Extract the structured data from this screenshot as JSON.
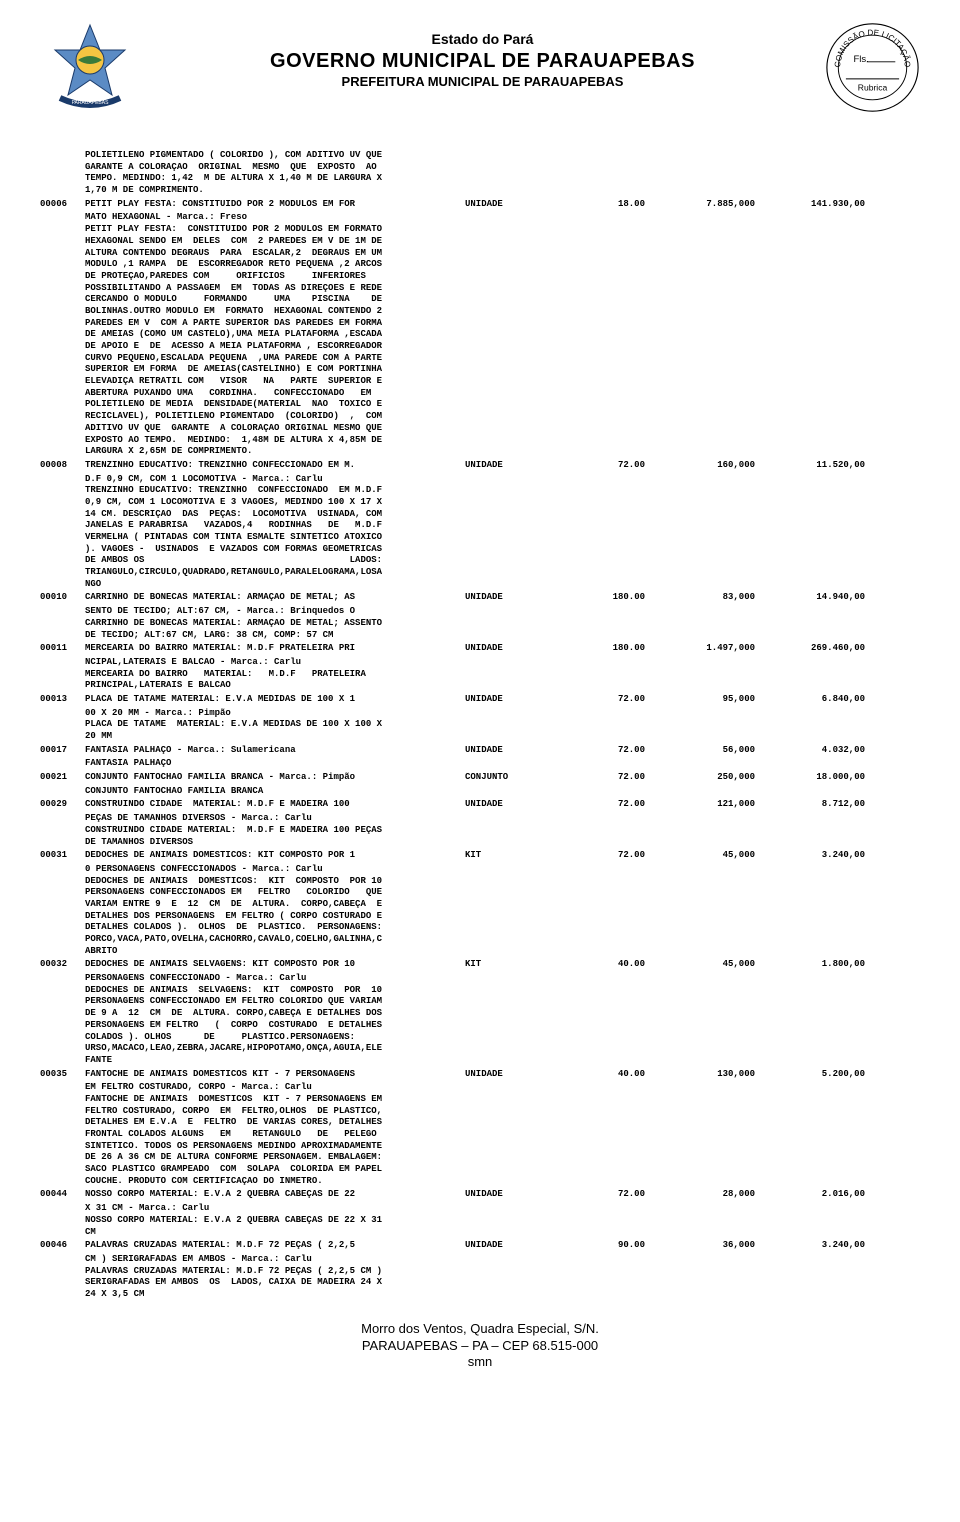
{
  "header": {
    "estado": "Estado do Pará",
    "governo": "GOVERNO MUNICIPAL DE PARAUAPEBAS",
    "prefeitura": "PREFEITURA MUNICIPAL DE PARAUAPEBAS",
    "stamp_top": "Fls.",
    "stamp_bottom": "Rubrica",
    "stamp_ring": "COMISSÃO DE LICITAÇÃO"
  },
  "pre_text": "POLIETILENO PIGMENTADO ( COLORIDO ), COM ADITIVO UV QUE\nGARANTE A COLORAÇAO  ORIGINAL  MESMO  QUE  EXPOSTO  AO\nTEMPO. MEDINDO: 1,42  M DE ALTURA X 1,40 M DE LARGURA X\n1,70 M DE COMPRIMENTO.",
  "items": [
    {
      "code": "00006",
      "unit": "UNIDADE",
      "qty": "18.00",
      "price": "7.885,000",
      "total": "141.930,00",
      "desc": "PETIT PLAY FESTA: CONSTITUIDO POR 2 MODULOS EM FOR\nMATO HEXAGONAL - Marca.: Freso\nPETIT PLAY FESTA:  CONSTITUIDO POR 2 MODULOS EM FORMATO\nHEXAGONAL SENDO EM  DELES  COM  2 PAREDES EM V DE 1M DE\nALTURA CONTENDO DEGRAUS  PARA  ESCALAR,2  DEGRAUS EM UM\nMODULO ,1 RAMPA  DE  ESCORREGADOR RETO PEQUENA ,2 ARCOS\nDE PROTEÇAO,PAREDES COM     ORIFICIOS     INFERIORES\nPOSSIBILITANDO A PASSAGEM  EM  TODAS AS DIREÇOES E REDE\nCERCANDO O MODULO     FORMANDO     UMA    PISCINA    DE\nBOLINHAS.OUTRO MODULO EM  FORMATO  HEXAGONAL CONTENDO 2\nPAREDES EM V  COM A PARTE SUPERIOR DAS PAREDES EM FORMA\nDE AMEIAS (COMO UM CASTELO),UMA MEIA PLATAFORMA ,ESCADA\nDE APOIO E  DE  ACESSO A MEIA PLATAFORMA , ESCORREGADOR\nCURVO PEQUENO,ESCALADA PEQUENA  ,UMA PAREDE COM A PARTE\nSUPERIOR EM FORMA  DE AMEIAS(CASTELINHO) E COM PORTINHA\nELEVADIÇA RETRATIL COM   VISOR   NA   PARTE  SUPERIOR E\nABERTURA PUXANDO UMA   CORDINHA.   CONFECCIONADO   EM\nPOLIETILENO DE MEDIA  DENSIDADE(MATERIAL  NAO  TOXICO E\nRECICLAVEL), POLIETILENO PIGMENTADO  (COLORIDO)  ,  COM\nADITIVO UV QUE  GARANTE  A COLORAÇAO ORIGINAL MESMO QUE\nEXPOSTO AO TEMPO.  MEDINDO:  1,48M DE ALTURA X 4,85M DE\nLARGURA X 2,65M DE COMPRIMENTO."
    },
    {
      "code": "00008",
      "unit": "UNIDADE",
      "qty": "72.00",
      "price": "160,000",
      "total": "11.520,00",
      "desc": "TRENZINHO EDUCATIVO: TRENZINHO CONFECCIONADO EM M.\nD.F 0,9 CM, COM 1 LOCOMOTIVA - Marca.: Carlu\nTRENZINHO EDUCATIVO: TRENZINHO  CONFECCIONADO  EM M.D.F\n0,9 CM, COM 1 LOCOMOTIVA E 3 VAGOES, MEDINDO 100 X 17 X\n14 CM. DESCRIÇAO  DAS  PEÇAS:  LOCOMOTIVA  USINADA, COM\nJANELAS E PARABRISA   VAZADOS,4   RODINHAS   DE   M.D.F\nVERMELHA ( PINTADAS COM TINTA ESMALTE SINTETICO ATOXICO\n). VAGOES -  USINADOS  E VAZADOS COM FORMAS GEOMETRICAS\nDE AMBOS OS                                      LADOS:\nTRIANGULO,CIRCULO,QUADRADO,RETANGULO,PARALELOGRAMA,LOSA\nNGO"
    },
    {
      "code": "00010",
      "unit": "UNIDADE",
      "qty": "180.00",
      "price": "83,000",
      "total": "14.940,00",
      "desc": "CARRINHO DE BONECAS MATERIAL: ARMAÇAO DE METAL; AS\nSENTO DE TECIDO; ALT:67 CM, - Marca.: Brinquedos O\nCARRINHO DE BONECAS MATERIAL: ARMAÇAO DE METAL; ASSENTO\nDE TECIDO; ALT:67 CM, LARG: 38 CM, COMP: 57 CM"
    },
    {
      "code": "00011",
      "unit": "UNIDADE",
      "qty": "180.00",
      "price": "1.497,000",
      "total": "269.460,00",
      "desc": "MERCEARIA DO BAIRRO MATERIAL: M.D.F PRATELEIRA PRI\nNCIPAL,LATERAIS E BALCAO - Marca.: Carlu\nMERCEARIA DO BAIRRO   MATERIAL:   M.D.F   PRATELEIRA\nPRINCIPAL,LATERAIS E BALCAO"
    },
    {
      "code": "00013",
      "unit": "UNIDADE",
      "qty": "72.00",
      "price": "95,000",
      "total": "6.840,00",
      "desc": "PLACA DE TATAME MATERIAL: E.V.A MEDIDAS DE 100 X 1\n00 X 20 MM - Marca.: Pimpão\nPLACA DE TATAME  MATERIAL: E.V.A MEDIDAS DE 100 X 100 X\n20 MM"
    },
    {
      "code": "00017",
      "unit": "UNIDADE",
      "qty": "72.00",
      "price": "56,000",
      "total": "4.032,00",
      "desc": "FANTASIA PALHAÇO - Marca.: Sulamericana\nFANTASIA PALHAÇO"
    },
    {
      "code": "00021",
      "unit": "CONJUNTO",
      "qty": "72.00",
      "price": "250,000",
      "total": "18.000,00",
      "desc": "CONJUNTO FANTOCHAO FAMILIA BRANCA - Marca.: Pimpão\nCONJUNTO FANTOCHAO FAMILIA BRANCA"
    },
    {
      "code": "00029",
      "unit": "UNIDADE",
      "qty": "72.00",
      "price": "121,000",
      "total": "8.712,00",
      "desc": "CONSTRUINDO CIDADE  MATERIAL: M.D.F E MADEIRA 100\nPEÇAS DE TAMANHOS DIVERSOS - Marca.: Carlu\nCONSTRUINDO CIDADE MATERIAL:  M.D.F E MADEIRA 100 PEÇAS\nDE TAMANHOS DIVERSOS"
    },
    {
      "code": "00031",
      "unit": "KIT",
      "qty": "72.00",
      "price": "45,000",
      "total": "3.240,00",
      "desc": "DEDOCHES DE ANIMAIS DOMESTICOS: KIT COMPOSTO POR 1\n0 PERSONAGENS CONFECCIONADOS - Marca.: Carlu\nDEDOCHES DE ANIMAIS  DOMESTICOS:  KIT  COMPOSTO  POR 10\nPERSONAGENS CONFECCIONADOS EM   FELTRO   COLORIDO   QUE\nVARIAM ENTRE 9  E  12  CM  DE  ALTURA.  CORPO,CABEÇA  E\nDETALHES DOS PERSONAGENS  EM FELTRO ( CORPO COSTURADO E\nDETALHES COLADOS ).  OLHOS  DE  PLASTICO.  PERSONAGENS:\nPORCO,VACA,PATO,OVELHA,CACHORRO,CAVALO,COELHO,GALINHA,C\nABRITO"
    },
    {
      "code": "00032",
      "unit": "KIT",
      "qty": "40.00",
      "price": "45,000",
      "total": "1.800,00",
      "desc": "DEDOCHES DE ANIMAIS SELVAGENS: KIT COMPOSTO POR 10\nPERSONAGENS CONFECCIONADO - Marca.: Carlu\nDEDOCHES DE ANIMAIS  SELVAGENS:  KIT  COMPOSTO  POR  10\nPERSONAGENS CONFECCIONADO EM FELTRO COLORIDO QUE VARIAM\nDE 9 A  12  CM  DE  ALTURA. CORPO,CABEÇA E DETALHES DOS\nPERSONAGENS EM FELTRO   (  CORPO  COSTURADO  E DETALHES\nCOLADOS ). OLHOS      DE     PLASTICO.PERSONAGENS:\nURSO,MACACO,LEAO,ZEBRA,JACARE,HIPOPOTAMO,ONÇA,AGUIA,ELE\nFANTE"
    },
    {
      "code": "00035",
      "unit": "UNIDADE",
      "qty": "40.00",
      "price": "130,000",
      "total": "5.200,00",
      "desc": "FANTOCHE DE ANIMAIS DOMESTICOS KIT - 7 PERSONAGENS\nEM FELTRO COSTURADO, CORPO - Marca.: Carlu\nFANTOCHE DE ANIMAIS  DOMESTICOS  KIT - 7 PERSONAGENS EM\nFELTRO COSTURADO, CORPO  EM  FELTRO,OLHOS  DE PLASTICO,\nDETALHES EM E.V.A  E  FELTRO  DE VARIAS CORES, DETALHES\nFRONTAL COLADOS ALGUNS   EM    RETANGULO   DE   PELEGO\nSINTETICO. TODOS OS PERSONAGENS MEDINDO APROXIMADAMENTE\nDE 26 A 36 CM DE ALTURA CONFORME PERSONAGEM. EMBALAGEM:\nSACO PLASTICO GRAMPEADO  COM  SOLAPA  COLORIDA EM PAPEL\nCOUCHE. PRODUTO COM CERTIFICAÇAO DO INMETRO."
    },
    {
      "code": "00044",
      "unit": "UNIDADE",
      "qty": "72.00",
      "price": "28,000",
      "total": "2.016,00",
      "desc": "NOSSO CORPO MATERIAL: E.V.A 2 QUEBRA CABEÇAS DE 22\nX 31 CM - Marca.: Carlu\nNOSSO CORPO MATERIAL: E.V.A 2 QUEBRA CABEÇAS DE 22 X 31\nCM"
    },
    {
      "code": "00046",
      "unit": "UNIDADE",
      "qty": "90.00",
      "price": "36,000",
      "total": "3.240,00",
      "desc": "PALAVRAS CRUZADAS MATERIAL: M.D.F 72 PEÇAS ( 2,2,5\nCM ) SERIGRAFADAS EM AMBOS - Marca.: Carlu\nPALAVRAS CRUZADAS MATERIAL: M.D.F 72 PEÇAS ( 2,2,5 CM )\nSERIGRAFADAS EM AMBOS  OS  LADOS, CAIXA DE MADEIRA 24 X\n24 X 3,5 CM"
    }
  ],
  "footer": {
    "line1": "Morro dos Ventos, Quadra Especial, S/N.",
    "line2": "PARAUAPEBAS – PA – CEP 68.515-000",
    "line3": "smn"
  },
  "colors": {
    "text": "#000000",
    "bg": "#ffffff",
    "logo_blue": "#5b8bc4",
    "logo_green": "#3a7a3a",
    "logo_yellow": "#f5c542"
  }
}
